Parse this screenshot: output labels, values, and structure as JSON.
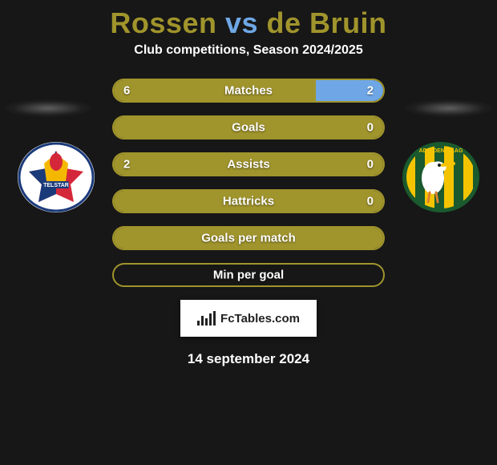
{
  "title": {
    "player1": "Rossen",
    "vs": "vs",
    "player2": "de Bruin",
    "player1_color": "#a0942c",
    "vs_color": "#6fa7e6",
    "player2_color": "#a0942c"
  },
  "subtitle": "Club competitions, Season 2024/2025",
  "bar_styling": {
    "border_color": "#a0942c",
    "fill_color_left": "#a0942c",
    "fill_color_right": "#6fa7e6",
    "empty_color": "transparent",
    "full_left_color": "#a0942c"
  },
  "stats": [
    {
      "label": "Matches",
      "left_value": "6",
      "right_value": "2",
      "left_pct": 75,
      "right_pct": 25,
      "show_values": true
    },
    {
      "label": "Goals",
      "left_value": "",
      "right_value": "0",
      "left_pct": 100,
      "right_pct": 0,
      "show_values": true,
      "show_left_value": false
    },
    {
      "label": "Assists",
      "left_value": "2",
      "right_value": "0",
      "left_pct": 100,
      "right_pct": 0,
      "show_values": true
    },
    {
      "label": "Hattricks",
      "left_value": "",
      "right_value": "0",
      "left_pct": 100,
      "right_pct": 0,
      "show_values": true,
      "show_left_value": false
    },
    {
      "label": "Goals per match",
      "left_value": "",
      "right_value": "",
      "left_pct": 100,
      "right_pct": 0,
      "show_values": false
    },
    {
      "label": "Min per goal",
      "left_value": "",
      "right_value": "",
      "left_pct": 0,
      "right_pct": 0,
      "show_values": false
    }
  ],
  "footer_brand": "FcTables.com",
  "date": "14 september 2024",
  "background_color": "#171717"
}
